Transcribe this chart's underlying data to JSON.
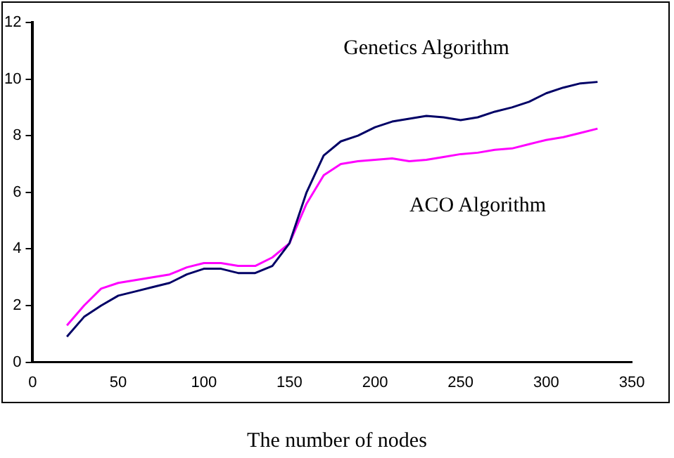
{
  "chart_data": {
    "type": "line",
    "xlabel": "The number of nodes",
    "x": [
      20,
      30,
      40,
      50,
      60,
      70,
      80,
      90,
      100,
      110,
      120,
      130,
      140,
      150,
      160,
      170,
      180,
      190,
      200,
      210,
      220,
      230,
      240,
      250,
      260,
      270,
      280,
      290,
      300,
      310,
      320,
      330
    ],
    "series": [
      {
        "name": "Genetics Algorithm",
        "color": "#000066",
        "values": [
          0.9,
          1.6,
          2.0,
          2.35,
          2.5,
          2.65,
          2.8,
          3.1,
          3.3,
          3.3,
          3.15,
          3.15,
          3.4,
          4.2,
          6.0,
          7.3,
          7.8,
          8.0,
          8.3,
          8.5,
          8.6,
          8.7,
          8.65,
          8.55,
          8.65,
          8.85,
          9.0,
          9.2,
          9.5,
          9.7,
          9.85,
          9.9
        ]
      },
      {
        "name": "ACO Algorithm",
        "color": "#ff00ff",
        "values": [
          1.3,
          2.0,
          2.6,
          2.8,
          2.9,
          3.0,
          3.1,
          3.35,
          3.5,
          3.5,
          3.4,
          3.4,
          3.7,
          4.2,
          5.6,
          6.6,
          7.0,
          7.1,
          7.15,
          7.2,
          7.1,
          7.15,
          7.25,
          7.35,
          7.4,
          7.5,
          7.55,
          7.7,
          7.85,
          7.95,
          8.1,
          8.25
        ]
      }
    ],
    "xlim": [
      0,
      350
    ],
    "xticks": [
      0,
      50,
      100,
      150,
      200,
      250,
      300,
      350
    ],
    "ylim": [
      0,
      12
    ],
    "yticks": [
      0,
      2,
      4,
      6,
      8,
      10,
      12
    ],
    "grid": false,
    "legend": false,
    "marker": "none",
    "line_style": "solid"
  }
}
